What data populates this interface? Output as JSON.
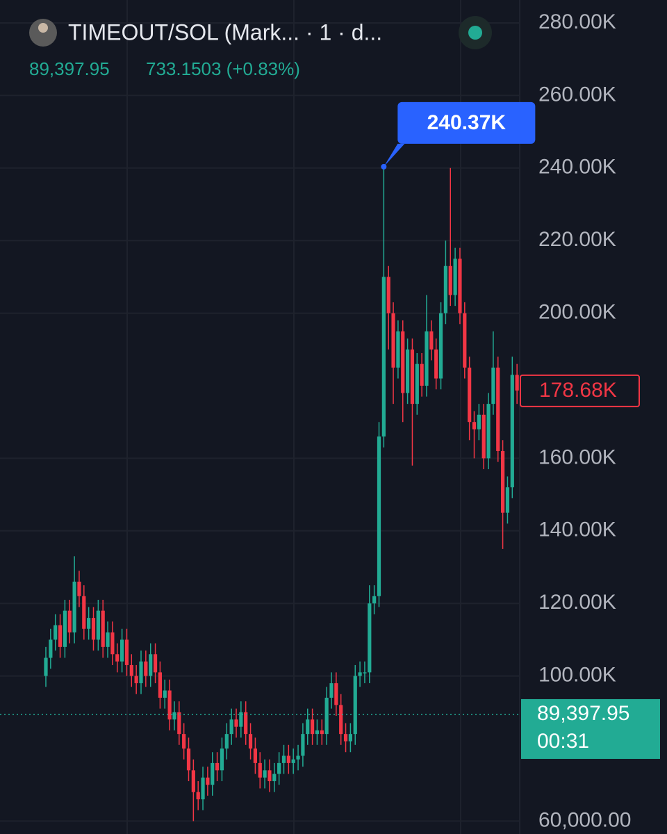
{
  "header": {
    "title": "TIMEOUT/SOL (Mark... · 1 · d...",
    "price": "89,397.95",
    "change": "733.1503 (+0.83%)"
  },
  "chart_data": {
    "type": "candlestick",
    "open": [
      100000,
      105000,
      110000,
      114000,
      108000,
      118000,
      112000,
      126000,
      122000,
      113000,
      116000,
      110000,
      118000,
      108000,
      112000,
      106000,
      104000,
      110000,
      103000,
      100000,
      98000,
      104000,
      100000,
      106000,
      101000,
      94000,
      96000,
      88000,
      90000,
      84000,
      80000,
      74000,
      68000,
      66000,
      72000,
      70000,
      76000,
      74000,
      80000,
      84000,
      88000,
      86000,
      90000,
      84000,
      80000,
      76000,
      72000,
      74000,
      71000,
      73000,
      76000,
      78000,
      76000,
      77000,
      78000,
      84000,
      88000,
      84000,
      85000,
      84000,
      94000,
      98000,
      92000,
      84000,
      82000,
      84000,
      100000,
      101000,
      101000,
      120000,
      122000,
      166000,
      210000,
      200000,
      185000,
      195000,
      178000,
      190000,
      175000,
      186000,
      180000,
      195000,
      190000,
      182000,
      200000,
      213000,
      205000,
      215000,
      200000,
      185000,
      170000,
      168000,
      172000,
      160000,
      175000,
      185000,
      162000,
      145000,
      152000,
      183000
    ],
    "high": [
      108000,
      113000,
      117000,
      117000,
      121000,
      121000,
      133000,
      129000,
      125000,
      119000,
      119000,
      121000,
      121000,
      115000,
      115000,
      109000,
      113000,
      113000,
      106000,
      103000,
      107000,
      107000,
      109000,
      109000,
      104000,
      99000,
      99000,
      93000,
      93000,
      87000,
      83000,
      77000,
      71000,
      75000,
      75000,
      79000,
      79000,
      83000,
      87000,
      91000,
      91000,
      93000,
      93000,
      87000,
      83000,
      79000,
      77000,
      77000,
      76000,
      79000,
      81000,
      81000,
      80000,
      81000,
      87000,
      91000,
      91000,
      88000,
      88000,
      97000,
      101000,
      101000,
      95000,
      87000,
      87000,
      103000,
      104000,
      104000,
      125000,
      125000,
      170000,
      240370,
      213000,
      203000,
      198000,
      198000,
      193000,
      193000,
      189000,
      189000,
      205000,
      198000,
      193000,
      203000,
      220000,
      240000,
      218000,
      218000,
      203000,
      188000,
      173000,
      175000,
      175000,
      178000,
      195000,
      188000,
      165000,
      155000,
      188000,
      186000
    ],
    "low": [
      97000,
      102000,
      107000,
      105000,
      105000,
      109000,
      109000,
      119000,
      110000,
      110000,
      107000,
      107000,
      105000,
      105000,
      103000,
      101000,
      101000,
      100000,
      97000,
      95000,
      95000,
      97000,
      97000,
      98000,
      91000,
      91000,
      85000,
      85000,
      81000,
      77000,
      71000,
      60000,
      63000,
      63000,
      67000,
      67000,
      71000,
      71000,
      77000,
      81000,
      83000,
      83000,
      81000,
      77000,
      73000,
      69000,
      69000,
      68000,
      68000,
      70000,
      73000,
      73000,
      73000,
      74000,
      75000,
      81000,
      81000,
      81000,
      81000,
      81000,
      91000,
      89000,
      81000,
      79000,
      79000,
      81000,
      97000,
      98000,
      98000,
      117000,
      119000,
      163000,
      190000,
      175000,
      182000,
      170000,
      175000,
      158000,
      172000,
      177000,
      177000,
      187000,
      179000,
      179000,
      197000,
      202000,
      202000,
      197000,
      182000,
      165000,
      160000,
      165000,
      157000,
      157000,
      172000,
      159000,
      135000,
      142000,
      149000,
      175000
    ],
    "close": [
      105000,
      110000,
      114000,
      108000,
      118000,
      112000,
      126000,
      122000,
      113000,
      116000,
      110000,
      118000,
      108000,
      112000,
      106000,
      104000,
      110000,
      103000,
      100000,
      98000,
      104000,
      100000,
      106000,
      101000,
      94000,
      96000,
      88000,
      90000,
      84000,
      80000,
      74000,
      68000,
      66000,
      72000,
      70000,
      76000,
      74000,
      80000,
      84000,
      88000,
      86000,
      90000,
      84000,
      80000,
      76000,
      72000,
      74000,
      71000,
      73000,
      76000,
      78000,
      76000,
      77000,
      78000,
      84000,
      88000,
      84000,
      85000,
      84000,
      94000,
      98000,
      92000,
      84000,
      82000,
      84000,
      100000,
      101000,
      101000,
      120000,
      122000,
      166000,
      210000,
      200000,
      185000,
      195000,
      178000,
      190000,
      175000,
      186000,
      180000,
      195000,
      190000,
      182000,
      200000,
      213000,
      205000,
      215000,
      200000,
      185000,
      170000,
      168000,
      172000,
      160000,
      175000,
      185000,
      162000,
      145000,
      152000,
      183000,
      178680
    ],
    "up_color": "#22ab94",
    "down_color": "#f23645",
    "ylim": [
      56440,
      286320
    ],
    "yticks": [
      {
        "value": 60000,
        "label": "60,000.00"
      },
      {
        "value": 100000,
        "label": "100.00K"
      },
      {
        "value": 120000,
        "label": "120.00K"
      },
      {
        "value": 140000,
        "label": "140.00K"
      },
      {
        "value": 160000,
        "label": "160.00K"
      },
      {
        "value": 200000,
        "label": "200.00K"
      },
      {
        "value": 220000,
        "label": "220.00K"
      },
      {
        "value": 240000,
        "label": "240.00K"
      },
      {
        "value": 260000,
        "label": "260.00K"
      },
      {
        "value": 280000,
        "label": "280.00K"
      }
    ],
    "grid": true,
    "high_marker": {
      "value": 240370,
      "label": "240.37K"
    },
    "last_price": {
      "value": 178680,
      "label": "178.68K"
    },
    "current_price": {
      "value": 89397.95,
      "label": "89,397.95"
    },
    "countdown": "00:31"
  }
}
